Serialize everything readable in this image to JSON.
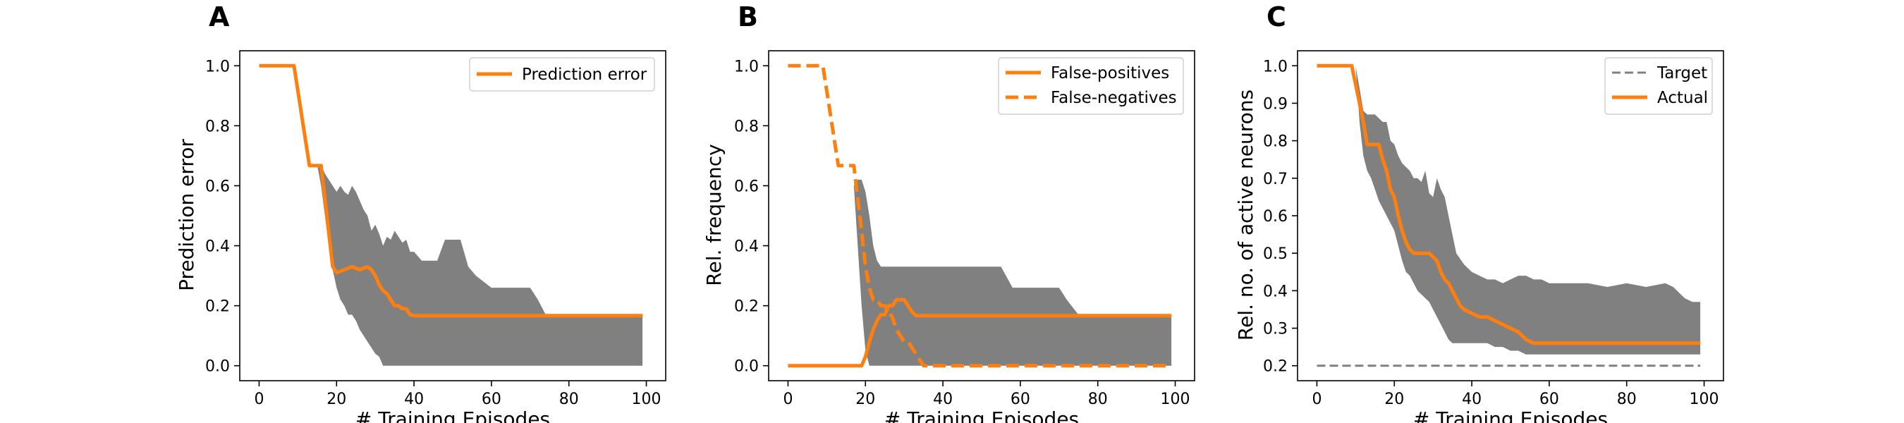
{
  "colors": {
    "orange": "#ff7f0e",
    "band": "#808080",
    "target": "#808080",
    "frame": "#000000"
  },
  "chart_data": [
    {
      "panel": "A",
      "type": "line",
      "xlabel": "# Training Episodes",
      "ylabel": "Prediction error",
      "xlim": [
        -5,
        105
      ],
      "ylim": [
        -0.05,
        1.05
      ],
      "xticks": [
        0,
        20,
        40,
        60,
        80,
        100
      ],
      "yticks": [
        0.0,
        0.2,
        0.4,
        0.6,
        0.8,
        1.0
      ],
      "legend_position": "top-right",
      "band": {
        "x": [
          15,
          16,
          17,
          18,
          19,
          20,
          21,
          22,
          23,
          24,
          25,
          26,
          27,
          28,
          29,
          30,
          31,
          32,
          33,
          34,
          35,
          36,
          37,
          38,
          39,
          40,
          42,
          44,
          46,
          48,
          50,
          52,
          54,
          56,
          58,
          60,
          62,
          64,
          66,
          68,
          70,
          72,
          74,
          76,
          80,
          85,
          90,
          95,
          99
        ],
        "upper": [
          0.67,
          0.67,
          0.64,
          0.62,
          0.6,
          0.58,
          0.6,
          0.58,
          0.57,
          0.6,
          0.58,
          0.55,
          0.52,
          0.5,
          0.45,
          0.47,
          0.44,
          0.4,
          0.43,
          0.42,
          0.45,
          0.43,
          0.41,
          0.42,
          0.38,
          0.38,
          0.35,
          0.35,
          0.35,
          0.42,
          0.42,
          0.42,
          0.33,
          0.3,
          0.28,
          0.26,
          0.26,
          0.26,
          0.26,
          0.26,
          0.26,
          0.22,
          0.17,
          0.17,
          0.17,
          0.17,
          0.17,
          0.17,
          0.17
        ],
        "lower": [
          0.67,
          0.6,
          0.5,
          0.4,
          0.32,
          0.26,
          0.22,
          0.2,
          0.17,
          0.17,
          0.15,
          0.12,
          0.1,
          0.08,
          0.06,
          0.04,
          0.03,
          0.0,
          0.0,
          0.0,
          0.0,
          0.0,
          0.0,
          0.0,
          0.0,
          0.0,
          0.0,
          0.0,
          0.0,
          0.0,
          0.0,
          0.0,
          0.0,
          0.0,
          0.0,
          0.0,
          0.0,
          0.0,
          0.0,
          0.0,
          0.0,
          0.0,
          0.0,
          0.0,
          0.0,
          0.0,
          0.0,
          0.0,
          0.0
        ]
      },
      "series": [
        {
          "name": "Prediction error",
          "style": "solid",
          "x": [
            0,
            9,
            13,
            16,
            19,
            20,
            22,
            24,
            26,
            28,
            29,
            30,
            31,
            32,
            33,
            34,
            35,
            36,
            37,
            38,
            39,
            40,
            99
          ],
          "y": [
            1.0,
            1.0,
            0.667,
            0.667,
            0.33,
            0.31,
            0.32,
            0.33,
            0.32,
            0.33,
            0.32,
            0.3,
            0.27,
            0.25,
            0.24,
            0.22,
            0.2,
            0.2,
            0.19,
            0.19,
            0.17,
            0.167,
            0.167
          ]
        }
      ]
    },
    {
      "panel": "B",
      "type": "line",
      "xlabel": "# Training Episodes",
      "ylabel": "Rel. frequency",
      "xlim": [
        -5,
        105
      ],
      "ylim": [
        -0.05,
        1.05
      ],
      "xticks": [
        0,
        20,
        40,
        60,
        80,
        100
      ],
      "yticks": [
        0.0,
        0.2,
        0.4,
        0.6,
        0.8,
        1.0
      ],
      "legend_position": "top-right",
      "band": {
        "x": [
          17,
          18,
          19,
          20,
          21,
          22,
          23,
          24,
          25,
          26,
          27,
          28,
          29,
          30,
          31,
          32,
          33,
          34,
          35,
          36,
          38,
          40,
          45,
          50,
          55,
          58,
          60,
          62,
          65,
          70,
          72,
          75,
          80,
          85,
          90,
          95,
          99
        ],
        "upper": [
          0.6,
          0.62,
          0.62,
          0.58,
          0.5,
          0.4,
          0.35,
          0.33,
          0.33,
          0.33,
          0.33,
          0.33,
          0.33,
          0.33,
          0.33,
          0.33,
          0.33,
          0.33,
          0.33,
          0.33,
          0.33,
          0.33,
          0.33,
          0.33,
          0.33,
          0.26,
          0.26,
          0.26,
          0.26,
          0.26,
          0.22,
          0.17,
          0.17,
          0.17,
          0.17,
          0.17,
          0.17
        ],
        "lower": [
          0.6,
          0.4,
          0.2,
          0.05,
          0.0,
          0.0,
          0.0,
          0.0,
          0.0,
          0.0,
          0.0,
          0.0,
          0.0,
          0.0,
          0.0,
          0.0,
          0.0,
          0.0,
          0.0,
          0.0,
          0.0,
          0.0,
          0.0,
          0.0,
          0.0,
          0.0,
          0.0,
          0.0,
          0.0,
          0.0,
          0.0,
          0.0,
          0.0,
          0.0,
          0.0,
          0.0,
          0.0
        ]
      },
      "series": [
        {
          "name": "False-positives",
          "style": "solid",
          "x": [
            0,
            19,
            20,
            21,
            22,
            23,
            24,
            25,
            26,
            27,
            28,
            29,
            30,
            31,
            32,
            33,
            99
          ],
          "y": [
            0.0,
            0.0,
            0.03,
            0.08,
            0.12,
            0.15,
            0.17,
            0.17,
            0.2,
            0.2,
            0.22,
            0.22,
            0.22,
            0.2,
            0.18,
            0.167,
            0.167
          ]
        },
        {
          "name": "False-negatives",
          "style": "dashed",
          "x": [
            0,
            9,
            13,
            17,
            19,
            20,
            21,
            22,
            23,
            24,
            25,
            26,
            27,
            28,
            29,
            30,
            31,
            32,
            33,
            34,
            35,
            99
          ],
          "y": [
            1.0,
            1.0,
            0.667,
            0.667,
            0.45,
            0.33,
            0.26,
            0.22,
            0.22,
            0.2,
            0.2,
            0.18,
            0.16,
            0.12,
            0.1,
            0.08,
            0.08,
            0.06,
            0.04,
            0.02,
            0.0,
            0.0
          ]
        }
      ]
    },
    {
      "panel": "C",
      "type": "line",
      "xlabel": "# Training Episodes",
      "ylabel": "Rel. no. of active neurons",
      "xlim": [
        -5,
        105
      ],
      "ylim": [
        0.16,
        1.04
      ],
      "xticks": [
        0,
        20,
        40,
        60,
        80,
        100
      ],
      "yticks": [
        0.2,
        0.3,
        0.4,
        0.5,
        0.6,
        0.7,
        0.8,
        0.9,
        1.0
      ],
      "legend_position": "top-right",
      "band": {
        "x": [
          10,
          11,
          12,
          13,
          14,
          15,
          16,
          17,
          18,
          19,
          20,
          21,
          22,
          23,
          24,
          25,
          26,
          27,
          28,
          29,
          30,
          31,
          32,
          33,
          34,
          35,
          36,
          38,
          40,
          42,
          44,
          46,
          48,
          50,
          52,
          54,
          56,
          58,
          60,
          65,
          70,
          75,
          80,
          85,
          90,
          92,
          95,
          97,
          99
        ],
        "upper": [
          1.0,
          0.94,
          0.88,
          0.87,
          0.87,
          0.87,
          0.86,
          0.85,
          0.85,
          0.8,
          0.79,
          0.76,
          0.74,
          0.73,
          0.72,
          0.7,
          0.7,
          0.69,
          0.72,
          0.66,
          0.65,
          0.7,
          0.67,
          0.65,
          0.6,
          0.55,
          0.5,
          0.47,
          0.45,
          0.44,
          0.43,
          0.43,
          0.42,
          0.43,
          0.44,
          0.44,
          0.43,
          0.43,
          0.42,
          0.42,
          0.42,
          0.41,
          0.42,
          0.41,
          0.42,
          0.41,
          0.38,
          0.37,
          0.37
        ],
        "lower": [
          1.0,
          0.85,
          0.76,
          0.72,
          0.7,
          0.67,
          0.64,
          0.62,
          0.6,
          0.58,
          0.56,
          0.52,
          0.48,
          0.45,
          0.44,
          0.42,
          0.4,
          0.39,
          0.38,
          0.37,
          0.35,
          0.33,
          0.31,
          0.29,
          0.27,
          0.26,
          0.26,
          0.26,
          0.26,
          0.26,
          0.26,
          0.25,
          0.25,
          0.24,
          0.24,
          0.23,
          0.23,
          0.23,
          0.23,
          0.23,
          0.23,
          0.23,
          0.23,
          0.23,
          0.23,
          0.23,
          0.23,
          0.23,
          0.23
        ]
      },
      "series": [
        {
          "name": "Target",
          "style": "dashed",
          "x": [
            0,
            99
          ],
          "y": [
            0.2,
            0.2
          ]
        },
        {
          "name": "Actual",
          "style": "solid",
          "x": [
            0,
            9,
            10,
            11,
            12,
            13,
            14,
            15,
            16,
            17,
            18,
            19,
            20,
            21,
            22,
            23,
            24,
            25,
            26,
            27,
            28,
            29,
            30,
            31,
            32,
            33,
            34,
            35,
            36,
            37,
            38,
            40,
            42,
            44,
            46,
            48,
            50,
            52,
            54,
            56,
            60,
            80,
            99
          ],
          "y": [
            1.0,
            1.0,
            0.95,
            0.9,
            0.85,
            0.79,
            0.79,
            0.79,
            0.79,
            0.75,
            0.72,
            0.67,
            0.65,
            0.6,
            0.56,
            0.53,
            0.51,
            0.5,
            0.5,
            0.5,
            0.5,
            0.5,
            0.49,
            0.48,
            0.45,
            0.43,
            0.42,
            0.4,
            0.38,
            0.36,
            0.35,
            0.34,
            0.33,
            0.33,
            0.32,
            0.31,
            0.3,
            0.29,
            0.27,
            0.26,
            0.26,
            0.26,
            0.26
          ]
        }
      ]
    }
  ]
}
